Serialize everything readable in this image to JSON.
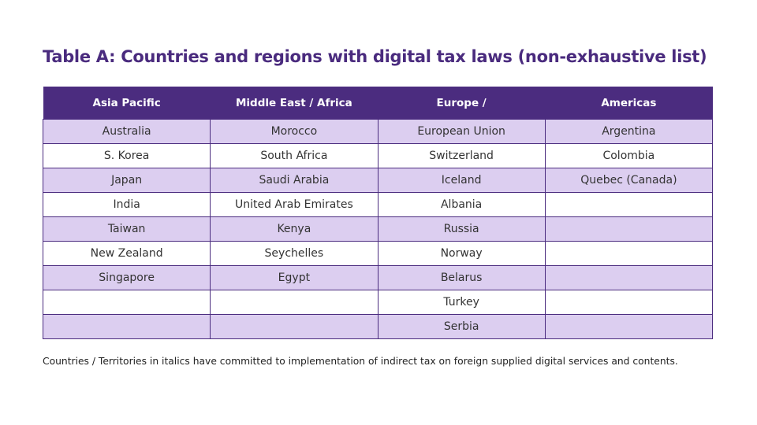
{
  "title": "Table A: Countries and regions with digital tax laws (non-exhaustive list)",
  "colors": {
    "header": "#4b2c7f",
    "row_alt": "#dccef0",
    "title": "#4a2b7e"
  },
  "table": {
    "headers": [
      "Asia Pacific",
      "Middle East / Africa",
      "Europe /",
      "Americas"
    ],
    "rows": [
      [
        "Australia",
        "Morocco",
        "European Union",
        "Argentina"
      ],
      [
        "S. Korea",
        "South Africa",
        "Switzerland",
        "Colombia"
      ],
      [
        "Japan",
        "Saudi Arabia",
        "Iceland",
        "Quebec (Canada)"
      ],
      [
        "India",
        "United Arab Emirates",
        "Albania",
        ""
      ],
      [
        "Taiwan",
        "Kenya",
        "Russia",
        ""
      ],
      [
        "New Zealand",
        "Seychelles",
        "Norway",
        ""
      ],
      [
        "Singapore",
        "Egypt",
        "Belarus",
        ""
      ],
      [
        "",
        "",
        "Turkey",
        ""
      ],
      [
        "",
        "",
        "Serbia",
        ""
      ]
    ]
  },
  "footnote": "Countries / Territories in italics have committed to implementation of indirect tax on foreign supplied digital services and contents."
}
